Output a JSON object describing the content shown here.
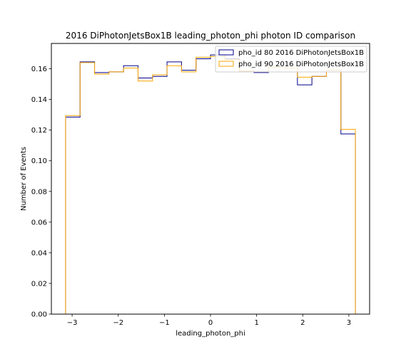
{
  "chart_data": {
    "type": "histogram",
    "title": "2016 DiPhotonJetsBox1B leading_photon_phi photon ID comparison",
    "xlabel": "leading_photon_phi",
    "ylabel": "Number of Events",
    "xlim": [
      -3.45,
      3.45
    ],
    "ylim": [
      0,
      0.1765
    ],
    "xticks": [
      -3,
      -2,
      -1,
      0,
      1,
      2,
      3
    ],
    "xtick_labels": [
      "−3",
      "−2",
      "−1",
      "0",
      "1",
      "2",
      "3"
    ],
    "yticks": [
      0.0,
      0.02,
      0.04,
      0.06,
      0.08,
      0.1,
      0.12,
      0.14,
      0.16
    ],
    "ytick_labels": [
      "0.00",
      "0.02",
      "0.04",
      "0.06",
      "0.08",
      "0.10",
      "0.12",
      "0.14",
      "0.16"
    ],
    "bin_edges": [
      -3.1416,
      -2.8274,
      -2.5133,
      -2.1991,
      -1.885,
      -1.5708,
      -1.2566,
      -0.9425,
      -0.6283,
      -0.3142,
      0.0,
      0.3142,
      0.6283,
      0.9425,
      1.2566,
      1.5708,
      1.885,
      2.1991,
      2.5133,
      2.8274,
      3.1416
    ],
    "legend_position": "upper right",
    "grid": false,
    "series": [
      {
        "name": "pho_id 80 2016 DiPhotonJetsBox1B",
        "color": "#00008b",
        "values": [
          0.1285,
          0.1645,
          0.1575,
          0.158,
          0.162,
          0.154,
          0.155,
          0.1645,
          0.159,
          0.1665,
          0.169,
          0.1665,
          0.1585,
          0.1575,
          0.161,
          0.1605,
          0.1495,
          0.155,
          0.159,
          0.1175
        ]
      },
      {
        "name": "pho_id 90 2016 DiPhotonJetsBox1B",
        "color": "#ffa500",
        "values": [
          0.1295,
          0.164,
          0.1565,
          0.158,
          0.1605,
          0.152,
          0.156,
          0.162,
          0.158,
          0.1675,
          0.168,
          0.166,
          0.1585,
          0.158,
          0.161,
          0.1605,
          0.1545,
          0.155,
          0.159,
          0.1205
        ]
      }
    ]
  }
}
